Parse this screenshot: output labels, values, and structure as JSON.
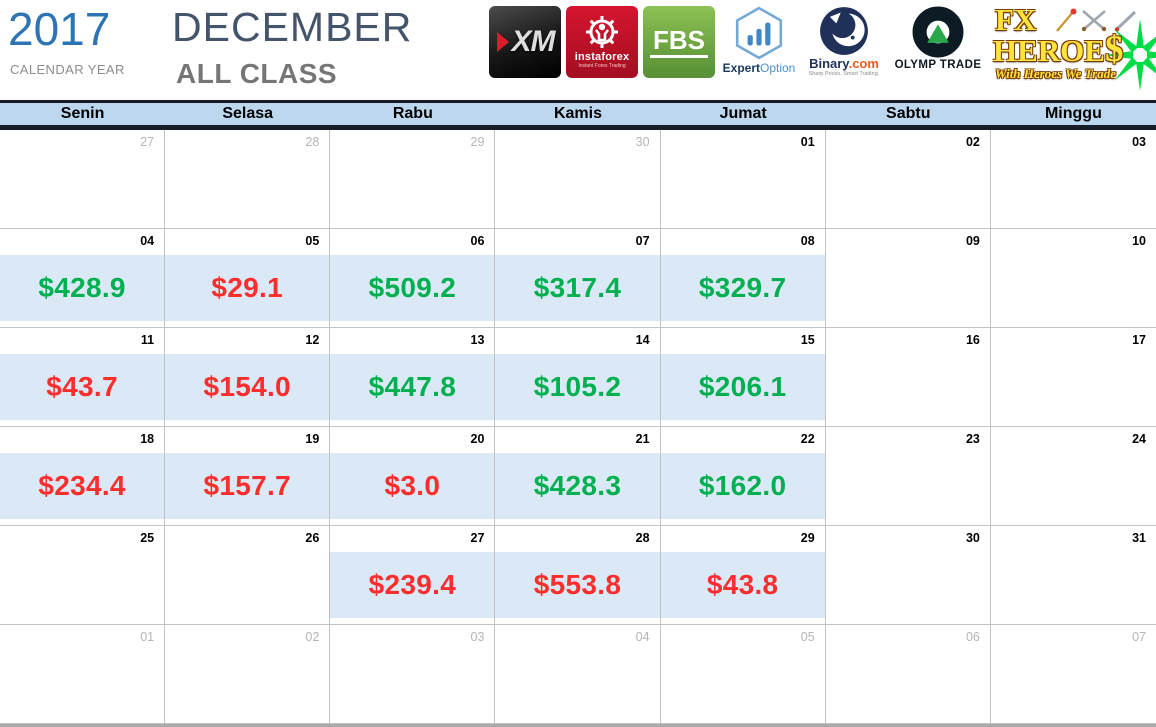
{
  "header": {
    "year": "2017",
    "year_caption": "CALENDAR YEAR",
    "month": "DECEMBER",
    "class_label": "ALL CLASS"
  },
  "logos": {
    "xm": {
      "label": "XM"
    },
    "instaforex": {
      "label": "instaforex",
      "tagline": "Instant Forex Trading"
    },
    "fbs": {
      "label": "FBS"
    },
    "expertoption": {
      "part1": "Expert",
      "part2": "Option"
    },
    "binary": {
      "name": "Binary",
      "suffix": ".com",
      "tagline": "Sharp Prices. Smart Trading."
    },
    "olymp": {
      "label": "OLYMP TRADE"
    },
    "fxheroes": {
      "line1": "FX",
      "line2": "HEROE",
      "dollar": "$",
      "tagline": "With Heroes We Trade"
    }
  },
  "calendar": {
    "day_headers": [
      "Senin",
      "Selasa",
      "Rabu",
      "Kamis",
      "Jumat",
      "Sabtu",
      "Minggu"
    ],
    "weeks": [
      [
        {
          "num": "27",
          "muted": true
        },
        {
          "num": "28",
          "muted": true
        },
        {
          "num": "29",
          "muted": true
        },
        {
          "num": "30",
          "muted": true
        },
        {
          "num": "01"
        },
        {
          "num": "02"
        },
        {
          "num": "03"
        }
      ],
      [
        {
          "num": "04",
          "value": "$428.9",
          "trend": "up"
        },
        {
          "num": "05",
          "value": "$29.1",
          "trend": "down"
        },
        {
          "num": "06",
          "value": "$509.2",
          "trend": "up"
        },
        {
          "num": "07",
          "value": "$317.4",
          "trend": "up"
        },
        {
          "num": "08",
          "value": "$329.7",
          "trend": "up"
        },
        {
          "num": "09"
        },
        {
          "num": "10"
        }
      ],
      [
        {
          "num": "11",
          "value": "$43.7",
          "trend": "down"
        },
        {
          "num": "12",
          "value": "$154.0",
          "trend": "down"
        },
        {
          "num": "13",
          "value": "$447.8",
          "trend": "up"
        },
        {
          "num": "14",
          "value": "$105.2",
          "trend": "up"
        },
        {
          "num": "15",
          "value": "$206.1",
          "trend": "up"
        },
        {
          "num": "16"
        },
        {
          "num": "17"
        }
      ],
      [
        {
          "num": "18",
          "value": "$234.4",
          "trend": "down"
        },
        {
          "num": "19",
          "value": "$157.7",
          "trend": "down"
        },
        {
          "num": "20",
          "value": "$3.0",
          "trend": "down"
        },
        {
          "num": "21",
          "value": "$428.3",
          "trend": "up"
        },
        {
          "num": "22",
          "value": "$162.0",
          "trend": "up"
        },
        {
          "num": "23"
        },
        {
          "num": "24"
        }
      ],
      [
        {
          "num": "25"
        },
        {
          "num": "26"
        },
        {
          "num": "27",
          "value": "$239.4",
          "trend": "down"
        },
        {
          "num": "28",
          "value": "$553.8",
          "trend": "down"
        },
        {
          "num": "29",
          "value": "$43.8",
          "trend": "down"
        },
        {
          "num": "30"
        },
        {
          "num": "31"
        }
      ],
      [
        {
          "num": "01",
          "muted": true
        },
        {
          "num": "02",
          "muted": true
        },
        {
          "num": "03",
          "muted": true
        },
        {
          "num": "04",
          "muted": true
        },
        {
          "num": "05",
          "muted": true
        },
        {
          "num": "06",
          "muted": true
        },
        {
          "num": "07",
          "muted": true
        }
      ]
    ]
  },
  "colors": {
    "profit_green": "#00B050",
    "loss_red": "#FB2E2E",
    "value_band_blue": "#DBE9F6",
    "weekday_header_blue": "#BDD7EE",
    "dark_border": "#161D27",
    "year_blue": "#2E74B5",
    "month_slate": "#44546A"
  }
}
